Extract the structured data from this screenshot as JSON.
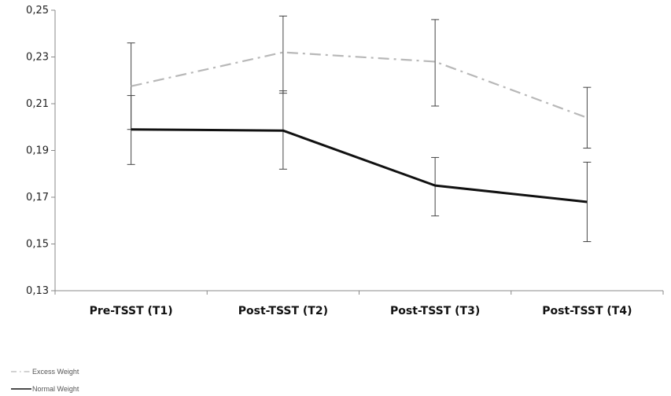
{
  "chart_data": {
    "type": "line",
    "categories": [
      "Pre-TSST (T1)",
      "Post-TSST (T2)",
      "Post-TSST (T3)",
      "Post-TSST (T4)"
    ],
    "ylim": [
      0.13,
      0.25
    ],
    "yticks": [
      "0,13",
      "0,15",
      "0,17",
      "0,19",
      "0,21",
      "0,23",
      "0,25"
    ],
    "ytick_values": [
      0.13,
      0.15,
      0.17,
      0.19,
      0.21,
      0.23,
      0.25
    ],
    "grid": false,
    "legend_position": "bottom-left",
    "series": [
      {
        "name": "Excess Weight",
        "style": "dash-dot",
        "color": "#b8b8b8",
        "values": [
          0.2175,
          0.232,
          0.228,
          0.204
        ],
        "err_low": [
          0.199,
          0.2145,
          0.209,
          0.191
        ],
        "err_high": [
          0.236,
          0.2475,
          0.246,
          0.217
        ]
      },
      {
        "name": "Normal Weight",
        "style": "solid",
        "color": "#111111",
        "values": [
          0.199,
          0.1985,
          0.175,
          0.168
        ],
        "err_low": [
          0.184,
          0.182,
          0.162,
          0.151
        ],
        "err_high": [
          0.2135,
          0.2155,
          0.187,
          0.185
        ]
      }
    ]
  }
}
